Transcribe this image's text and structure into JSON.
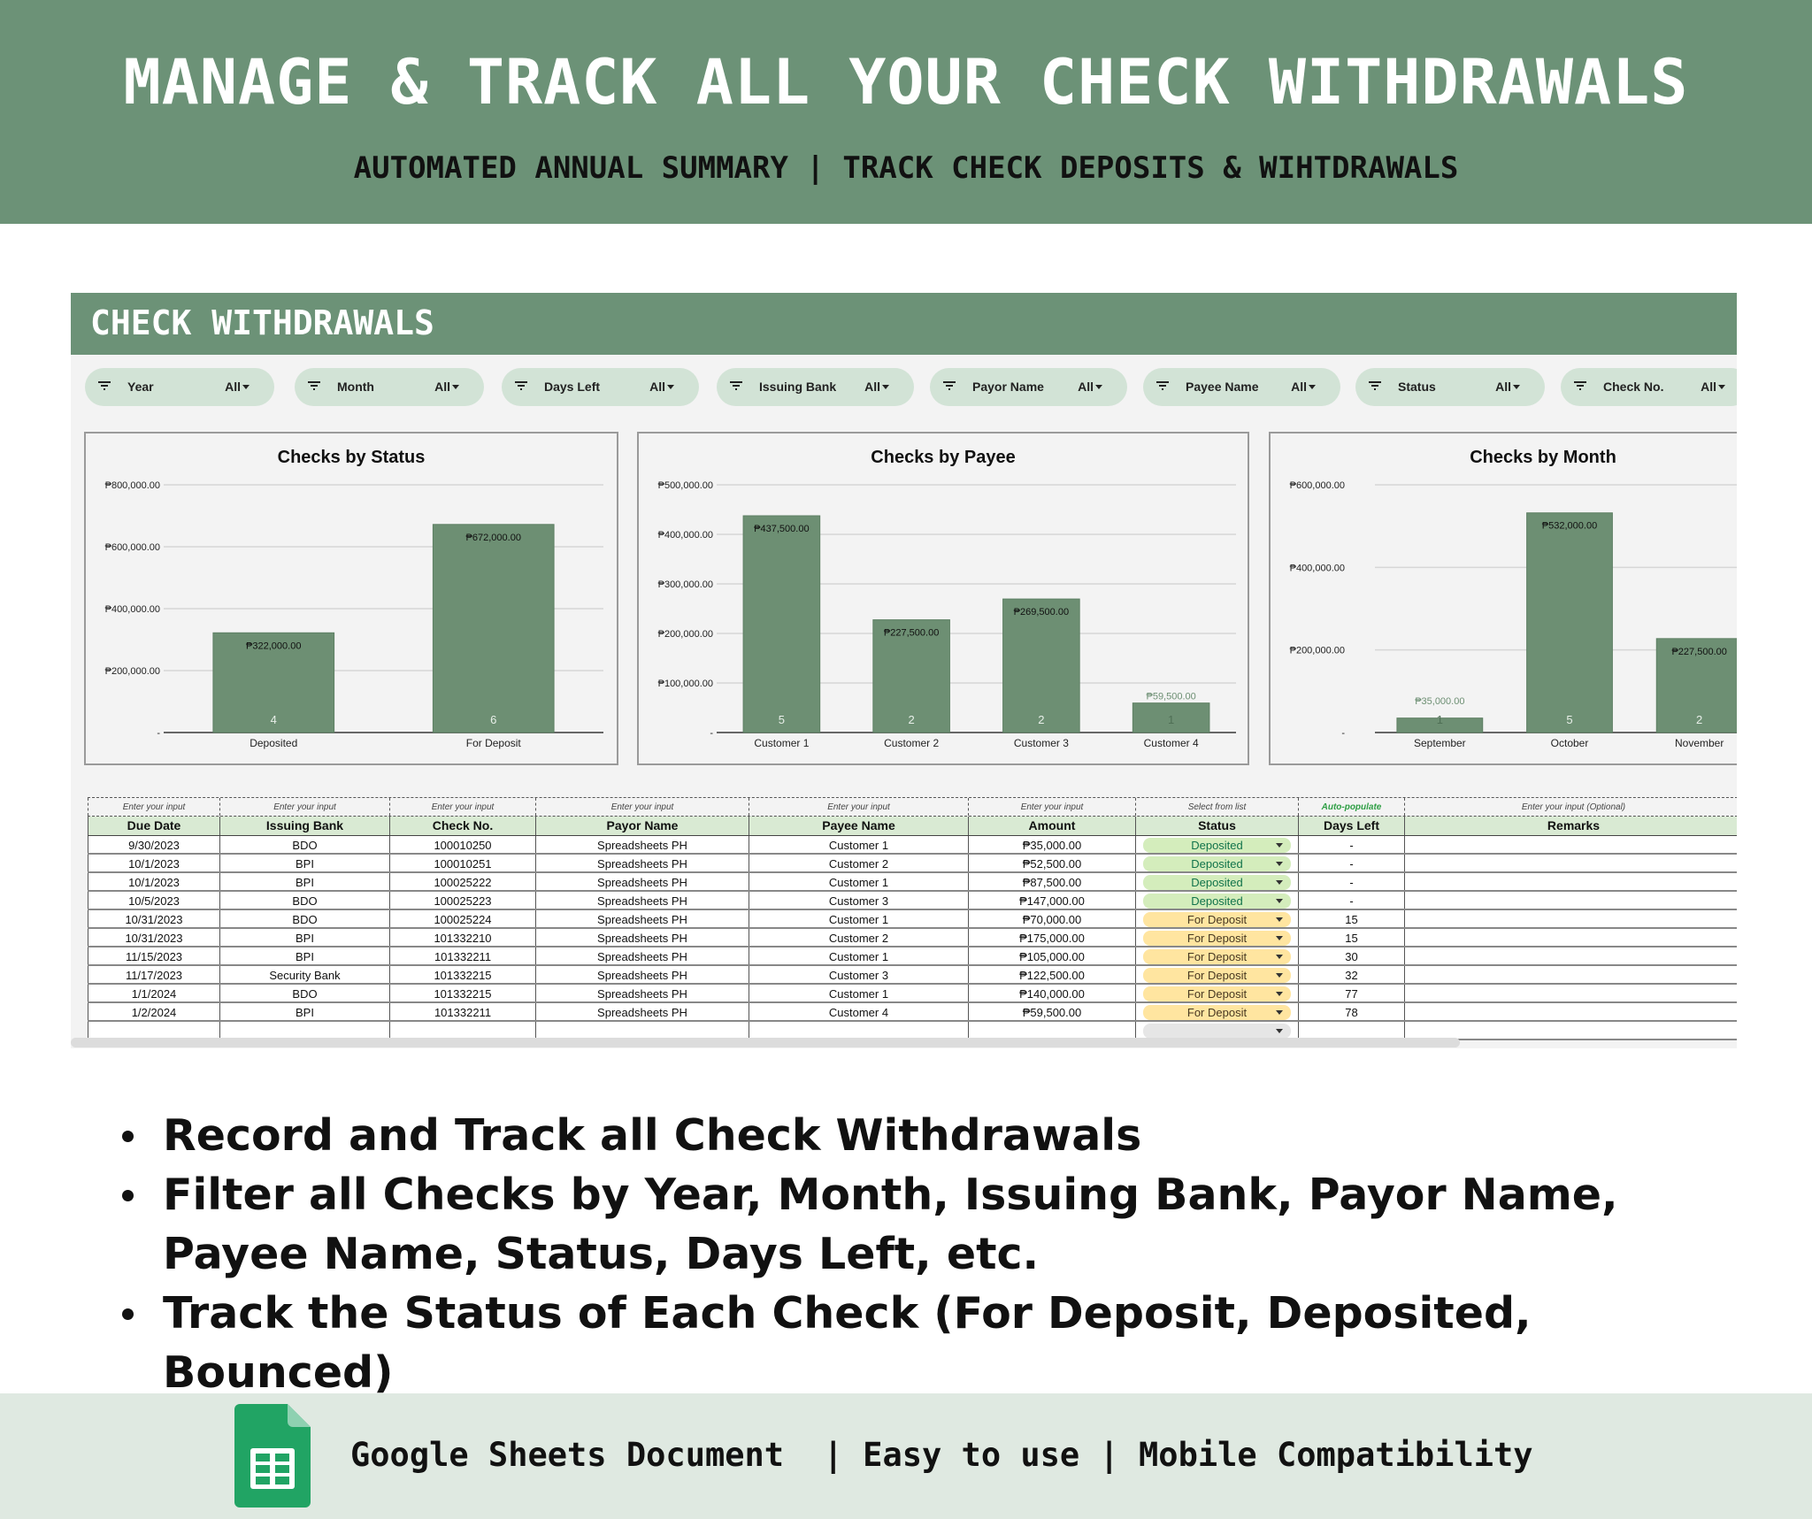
{
  "hero": {
    "title": "MANAGE & TRACK ALL YOUR CHECK WITHDRAWALS",
    "subtitle": "AUTOMATED ANNUAL SUMMARY | TRACK CHECK DEPOSITS & WIHTDRAWALS"
  },
  "panel": {
    "title": "CHECK WITHDRAWALS"
  },
  "filters": [
    {
      "label": "Year",
      "value": "All"
    },
    {
      "label": "Month",
      "value": "All"
    },
    {
      "label": "Days Left",
      "value": "All"
    },
    {
      "label": "Issuing Bank",
      "value": "All"
    },
    {
      "label": "Payor Name",
      "value": "All"
    },
    {
      "label": "Payee Name",
      "value": "All"
    },
    {
      "label": "Status",
      "value": "All"
    },
    {
      "label": "Check No.",
      "value": "All"
    }
  ],
  "chart_data": [
    {
      "type": "bar",
      "title": "Checks by Status",
      "categories": [
        "Deposited",
        "For Deposit"
      ],
      "values": [
        322000,
        672000
      ],
      "counts": [
        4,
        6
      ],
      "value_labels": [
        "₱322,000.00",
        "₱672,000.00"
      ],
      "ylim": [
        0,
        800000
      ],
      "yticks": [
        "-",
        "₱200,000.00",
        "₱400,000.00",
        "₱600,000.00",
        "₱800,000.00"
      ],
      "grid": true,
      "color": "#6d8f73"
    },
    {
      "type": "bar",
      "title": "Checks by Payee",
      "categories": [
        "Customer 1",
        "Customer 2",
        "Customer 3",
        "Customer 4"
      ],
      "values": [
        437500,
        227500,
        269500,
        59500
      ],
      "counts": [
        5,
        2,
        2,
        1
      ],
      "value_labels": [
        "₱437,500.00",
        "₱227,500.00",
        "₱269,500.00",
        "₱59,500.00"
      ],
      "ylim": [
        0,
        500000
      ],
      "yticks": [
        "-",
        "₱100,000.00",
        "₱200,000.00",
        "₱300,000.00",
        "₱400,000.00",
        "₱500,000.00"
      ],
      "grid": true,
      "color": "#6d8f73"
    },
    {
      "type": "bar",
      "title": "Checks by Month",
      "categories": [
        "September",
        "October",
        "November"
      ],
      "values": [
        35000,
        532000,
        227500
      ],
      "counts": [
        1,
        5,
        2
      ],
      "value_labels": [
        "₱35,000.00",
        "₱532,000.00",
        "₱227,500.00"
      ],
      "ylim": [
        0,
        600000
      ],
      "yticks": [
        "-",
        "₱200,000.00",
        "₱400,000.00",
        "₱600,000.00"
      ],
      "grid": true,
      "color": "#6d8f73"
    }
  ],
  "table": {
    "hints": [
      "Enter your input",
      "Enter your input",
      "Enter your input",
      "Enter your input",
      "Enter your input",
      "Enter your input",
      "Select from list",
      "Auto-populate",
      "Enter your input (Optional)"
    ],
    "headers": [
      "Due Date",
      "Issuing Bank",
      "Check No.",
      "Payor Name",
      "Payee Name",
      "Amount",
      "Status",
      "Days Left",
      "Remarks"
    ],
    "rows": [
      [
        "9/30/2023",
        "BDO",
        "100010250",
        "Spreadsheets PH",
        "Customer 1",
        "₱35,000.00",
        "Deposited",
        "-",
        ""
      ],
      [
        "10/1/2023",
        "BPI",
        "100010251",
        "Spreadsheets PH",
        "Customer 2",
        "₱52,500.00",
        "Deposited",
        "-",
        ""
      ],
      [
        "10/1/2023",
        "BPI",
        "100025222",
        "Spreadsheets PH",
        "Customer 1",
        "₱87,500.00",
        "Deposited",
        "-",
        ""
      ],
      [
        "10/5/2023",
        "BDO",
        "100025223",
        "Spreadsheets PH",
        "Customer 3",
        "₱147,000.00",
        "Deposited",
        "-",
        ""
      ],
      [
        "10/31/2023",
        "BDO",
        "100025224",
        "Spreadsheets PH",
        "Customer 1",
        "₱70,000.00",
        "For Deposit",
        "15",
        ""
      ],
      [
        "10/31/2023",
        "BPI",
        "101332210",
        "Spreadsheets PH",
        "Customer 2",
        "₱175,000.00",
        "For Deposit",
        "15",
        ""
      ],
      [
        "11/15/2023",
        "BPI",
        "101332211",
        "Spreadsheets PH",
        "Customer 1",
        "₱105,000.00",
        "For Deposit",
        "30",
        ""
      ],
      [
        "11/17/2023",
        "Security Bank",
        "101332215",
        "Spreadsheets PH",
        "Customer 3",
        "₱122,500.00",
        "For Deposit",
        "32",
        ""
      ],
      [
        "1/1/2024",
        "BDO",
        "101332215",
        "Spreadsheets PH",
        "Customer 1",
        "₱140,000.00",
        "For Deposit",
        "77",
        ""
      ],
      [
        "1/2/2024",
        "BPI",
        "101332211",
        "Spreadsheets PH",
        "Customer 4",
        "₱59,500.00",
        "For Deposit",
        "78",
        ""
      ]
    ],
    "status_colors": {
      "Deposited": {
        "bg": "#d4edbc",
        "fg": "#11734b"
      },
      "For Deposit": {
        "bg": "#ffe5a0",
        "fg": "#473821"
      }
    },
    "hint_accent": "#2e9e44"
  },
  "bullets": [
    "Record and Track all Check Withdrawals",
    "Filter all Checks by Year, Month, Issuing Bank, Payor Name, Payee Name, Status, Days Left, etc.",
    "Track the Status of Each Check (For Deposit, Deposited, Bounced)"
  ],
  "footer": {
    "text": "Google Sheets Document  | Easy to use | Mobile Compatibility",
    "icon": "google-sheets-icon"
  }
}
